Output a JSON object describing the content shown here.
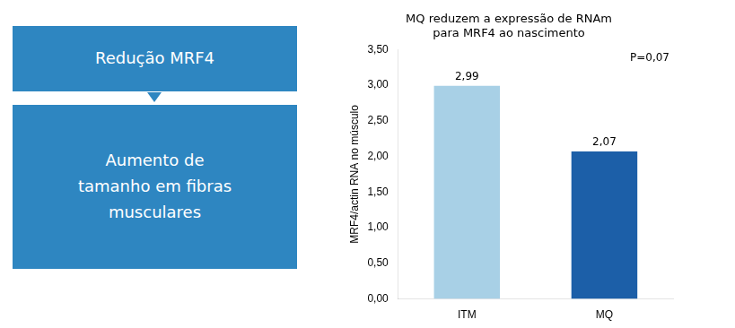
{
  "chart_data": [
    {
      "type": "bar",
      "title": "MQ reduzem a expressão de RNAm\npara MRF4 ao nascimento",
      "y_label": "MRF4/actin RNA no músculo",
      "categories": [
        "ITM",
        "MQ"
      ],
      "values": [
        2.99,
        2.07
      ],
      "value_labels": [
        "2,99",
        "2,07"
      ],
      "colors": [
        "#A8D0E6",
        "#1C5FA8"
      ],
      "ylim": [
        0,
        3.5
      ],
      "yticks": [
        {
          "value": 0.0,
          "label": "0,00"
        },
        {
          "value": 0.5,
          "label": "0,50"
        },
        {
          "value": 1.0,
          "label": "1,00"
        },
        {
          "value": 1.5,
          "label": "1,50"
        },
        {
          "value": 2.0,
          "label": "2,00"
        },
        {
          "value": 2.5,
          "label": "2,50"
        },
        {
          "value": 3.0,
          "label": "3,00"
        },
        {
          "value": 3.5,
          "label": "3,50"
        }
      ],
      "data_labels": true,
      "grid": false,
      "legend": false,
      "annotations": [
        "P=0,07"
      ]
    },
    {
      "type": "diagram",
      "annotations": [
        "Redução MRF4",
        "Aumento de\ntamanho em fibras\nmusculares"
      ],
      "color": "#2E86C1"
    }
  ]
}
